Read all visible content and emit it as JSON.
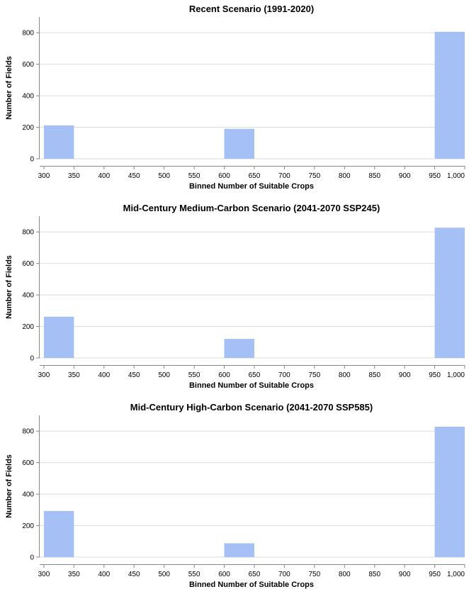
{
  "chart_data": [
    {
      "type": "bar",
      "title": "Recent Scenario (1991-2020)",
      "xlabel": "Binned Number of Suitable Crops",
      "ylabel": "Number of Fields",
      "x_ticks": [
        300,
        350,
        400,
        450,
        500,
        550,
        600,
        650,
        700,
        750,
        800,
        850,
        900,
        950,
        1000
      ],
      "x_tick_labels": [
        "300",
        "350",
        "400",
        "450",
        "500",
        "550",
        "600",
        "650",
        "700",
        "750",
        "800",
        "850",
        "900",
        "950",
        "1,000"
      ],
      "y_ticks": [
        0,
        200,
        400,
        600,
        800
      ],
      "y_tick_labels": [
        "0",
        "200",
        "400",
        "600",
        "800"
      ],
      "xlim": [
        293,
        1000
      ],
      "ylim": [
        0,
        900
      ],
      "grid": true,
      "bins": [
        {
          "x0": 300,
          "x1": 350,
          "value": 212
        },
        {
          "x0": 600,
          "x1": 650,
          "value": 190
        },
        {
          "x0": 950,
          "x1": 1000,
          "value": 806
        }
      ],
      "color": "#a4c0f4"
    },
    {
      "type": "bar",
      "title": "Mid-Century Medium-Carbon Scenario (2041-2070 SSP245)",
      "xlabel": "Binned Number of Suitable Crops",
      "ylabel": "Number of Fields",
      "x_ticks": [
        300,
        350,
        400,
        450,
        500,
        550,
        600,
        650,
        700,
        750,
        800,
        850,
        900,
        950,
        1000
      ],
      "x_tick_labels": [
        "300",
        "350",
        "400",
        "450",
        "500",
        "550",
        "600",
        "650",
        "700",
        "750",
        "800",
        "850",
        "900",
        "950",
        "1,000"
      ],
      "y_ticks": [
        0,
        200,
        400,
        600,
        800
      ],
      "y_tick_labels": [
        "0",
        "200",
        "400",
        "600",
        "800"
      ],
      "xlim": [
        293,
        1000
      ],
      "ylim": [
        0,
        900
      ],
      "grid": true,
      "bins": [
        {
          "x0": 300,
          "x1": 350,
          "value": 262
        },
        {
          "x0": 600,
          "x1": 650,
          "value": 121
        },
        {
          "x0": 950,
          "x1": 1000,
          "value": 827
        }
      ],
      "color": "#a4c0f4"
    },
    {
      "type": "bar",
      "title": "Mid-Century High-Carbon Scenario (2041-2070 SSP585)",
      "xlabel": "Binned Number of Suitable Crops",
      "ylabel": "Number of Fields",
      "x_ticks": [
        300,
        350,
        400,
        450,
        500,
        550,
        600,
        650,
        700,
        750,
        800,
        850,
        900,
        950,
        1000
      ],
      "x_tick_labels": [
        "300",
        "350",
        "400",
        "450",
        "500",
        "550",
        "600",
        "650",
        "700",
        "750",
        "800",
        "850",
        "900",
        "950",
        "1,000"
      ],
      "y_ticks": [
        0,
        200,
        400,
        600,
        800
      ],
      "y_tick_labels": [
        "0",
        "200",
        "400",
        "600",
        "800"
      ],
      "xlim": [
        293,
        1000
      ],
      "ylim": [
        0,
        900
      ],
      "grid": true,
      "bins": [
        {
          "x0": 300,
          "x1": 350,
          "value": 293
        },
        {
          "x0": 600,
          "x1": 650,
          "value": 88
        },
        {
          "x0": 950,
          "x1": 1000,
          "value": 828
        }
      ],
      "color": "#a4c0f4"
    }
  ]
}
